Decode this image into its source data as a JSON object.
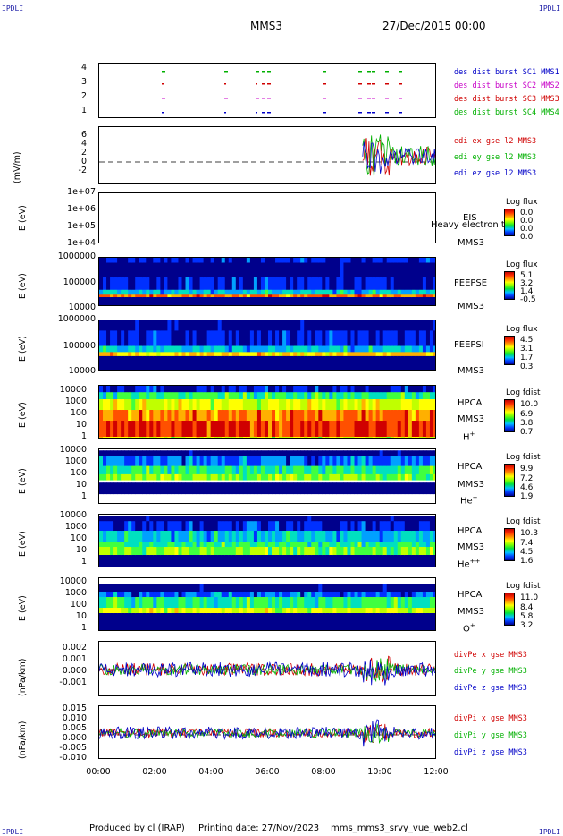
{
  "header": {
    "corner_label": "IPDLI",
    "spacecraft": "MMS3",
    "date_time": "27/Dec/2015 00:00"
  },
  "footer": {
    "produced_by": "Produced by cl (IRAP)",
    "printing_date": "Printing date: 27/Nov/2023",
    "filename": "mms_mms3_srvy_vue_web2.cl"
  },
  "x_axis": {
    "ticks": [
      "00:00",
      "02:00",
      "04:00",
      "06:00",
      "08:00",
      "10:00",
      "12:00"
    ]
  },
  "panels": {
    "burst": {
      "ticks": [
        "4",
        "3",
        "2",
        "1"
      ],
      "legend": [
        {
          "text": "des dist burst SC1 MMS1",
          "color": "#0000c8"
        },
        {
          "text": "des dist burst SC2 MMS2",
          "color": "#c800c8"
        },
        {
          "text": "des dist burst SC3 MMS3",
          "color": "#d00000"
        },
        {
          "text": "des dist burst SC4 MMS4",
          "color": "#00b000"
        }
      ]
    },
    "edi": {
      "ylabel": "(mV/m)",
      "ticks": [
        "6",
        "4",
        "2",
        "0",
        "-2"
      ],
      "legend": [
        {
          "text": "edi ex gse l2 MMS3",
          "color": "#d00000"
        },
        {
          "text": "edi ey gse l2 MMS3",
          "color": "#00b000"
        },
        {
          "text": "edi ez gse l2 MMS3",
          "color": "#0000c8"
        }
      ]
    },
    "eis": {
      "ylabel": "E (eV)",
      "ticks": [
        "1e+07",
        "1e+06",
        "1e+05",
        "1e+04"
      ],
      "instrument": "EIS",
      "overlay": "Heavy electron to",
      "spacecraft": "MMS3",
      "cbar_title": "Log flux",
      "cbar_values": [
        "0.0",
        "0.0",
        "0.0",
        "0.0"
      ]
    },
    "feepse": {
      "ylabel": "E (eV)",
      "ticks": [
        "1000000",
        "100000",
        "10000"
      ],
      "instrument": "FEEPSE",
      "spacecraft": "MMS3",
      "cbar_title": "Log flux",
      "cbar_values": [
        "5.1",
        "3.2",
        "1.4",
        "-0.5"
      ]
    },
    "feepsi": {
      "ylabel": "E (eV)",
      "ticks": [
        "1000000",
        "100000",
        "10000"
      ],
      "instrument": "FEEPSI",
      "spacecraft": "MMS3",
      "cbar_title": "Log flux",
      "cbar_values": [
        "4.5",
        "3.1",
        "1.7",
        "0.3"
      ]
    },
    "hpca_h": {
      "ylabel": "E (eV)",
      "ticks": [
        "10000",
        "1000",
        "100",
        "10",
        "1"
      ],
      "instrument": "HPCA",
      "spacecraft": "MMS3",
      "species": "H",
      "charge": "+",
      "cbar_title": "Log fdist",
      "cbar_values": [
        "10.0",
        "6.9",
        "3.8",
        "0.7"
      ]
    },
    "hpca_he": {
      "ylabel": "E (eV)",
      "ticks": [
        "10000",
        "1000",
        "100",
        "10",
        "1"
      ],
      "instrument": "HPCA",
      "spacecraft": "MMS3",
      "species": "He",
      "charge": "+",
      "cbar_title": "Log fdist",
      "cbar_values": [
        "9.9",
        "7.2",
        "4.6",
        "1.9"
      ]
    },
    "hpca_hepp": {
      "ylabel": "E (eV)",
      "ticks": [
        "10000",
        "1000",
        "100",
        "10",
        "1"
      ],
      "instrument": "HPCA",
      "spacecraft": "MMS3",
      "species": "He",
      "charge": "++",
      "cbar_title": "Log fdist",
      "cbar_values": [
        "10.3",
        "7.4",
        "4.5",
        "1.6"
      ]
    },
    "hpca_o": {
      "ylabel": "E (eV)",
      "ticks": [
        "10000",
        "1000",
        "100",
        "10",
        "1"
      ],
      "instrument": "HPCA",
      "spacecraft": "MMS3",
      "species": "O",
      "charge": "+",
      "cbar_title": "Log fdist",
      "cbar_values": [
        "11.0",
        "8.4",
        "5.8",
        "3.2"
      ]
    },
    "divpe": {
      "ylabel": "(nPa/km)",
      "ticks": [
        "0.002",
        "0.001",
        "0.000",
        "-0.001"
      ],
      "legend": [
        {
          "text": "divPe x gse MMS3",
          "color": "#d00000"
        },
        {
          "text": "divPe y gse MMS3",
          "color": "#00b000"
        },
        {
          "text": "divPe z gse MMS3",
          "color": "#0000c8"
        }
      ]
    },
    "divpi": {
      "ylabel": "(nPa/km)",
      "ticks": [
        "0.015",
        "0.010",
        "0.005",
        "0.000",
        "-0.005",
        "-0.010"
      ],
      "legend": [
        {
          "text": "divPi x gse MMS3",
          "color": "#d00000"
        },
        {
          "text": "divPi y gse MMS3",
          "color": "#00b000"
        },
        {
          "text": "divPi z gse MMS3",
          "color": "#0000c8"
        }
      ]
    }
  },
  "chart_data": {
    "type": "line",
    "x_range": [
      "00:00",
      "12:00"
    ],
    "series": [
      {
        "name": "edi ex gse l2 MMS3",
        "values": []
      },
      {
        "name": "edi ey gse l2 MMS3",
        "values": []
      },
      {
        "name": "edi ez gse l2 MMS3",
        "values": []
      },
      {
        "name": "divPe x gse MMS3",
        "values": []
      },
      {
        "name": "divPe y gse MMS3",
        "values": []
      },
      {
        "name": "divPe z gse MMS3",
        "values": []
      },
      {
        "name": "divPi x gse MMS3",
        "values": []
      },
      {
        "name": "divPi y gse MMS3",
        "values": []
      },
      {
        "name": "divPi z gse MMS3",
        "values": []
      }
    ]
  }
}
